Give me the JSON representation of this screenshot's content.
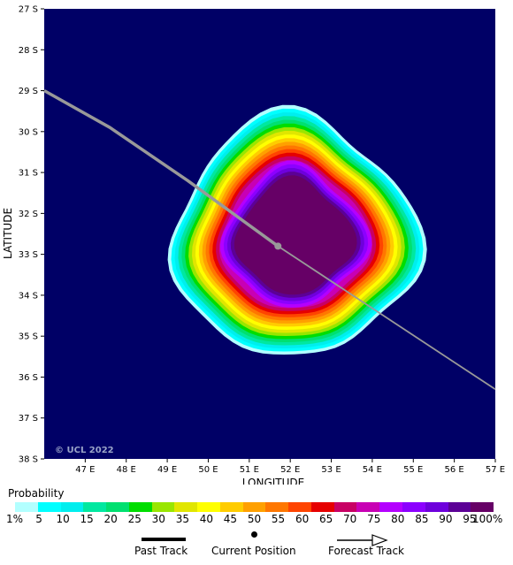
{
  "map": {
    "x_axis_label": "LONGITUDE",
    "y_axis_label": "LATITUDE",
    "copyright": "© UCL 2022",
    "lon_ticks": [
      "47 E",
      "48 E",
      "49 E",
      "50 E",
      "51 E",
      "52 E",
      "53 E",
      "54 E",
      "55 E",
      "56 E",
      "57 E"
    ],
    "lat_ticks": [
      "27 S",
      "28 S",
      "29 S",
      "30 S",
      "31 S",
      "32 S",
      "33 S",
      "34 S",
      "35 S",
      "36 S",
      "37 S",
      "38 S"
    ],
    "lon_range": [
      46,
      57
    ],
    "lat_range": [
      27,
      38
    ],
    "ocean_color": "#000066",
    "track_color": "#999999",
    "past_track": [
      [
        46,
        29.0
      ],
      [
        47.6,
        29.9
      ],
      [
        49.5,
        31.2
      ],
      [
        51.7,
        32.8
      ]
    ],
    "current_position": [
      51.7,
      32.8
    ],
    "forecast_track": [
      [
        51.7,
        32.8
      ],
      [
        57,
        36.3
      ]
    ],
    "probability_field": {
      "center": [
        52.1,
        32.6
      ],
      "outer_extent_radius_deg": 2.9,
      "innermost_radius_deg": 1.35,
      "levels": [
        1,
        5,
        10,
        15,
        20,
        25,
        30,
        35,
        40,
        45,
        50,
        55,
        60,
        65,
        70,
        75,
        80,
        85,
        90,
        95,
        100
      ]
    }
  },
  "legend": {
    "title": "Probability",
    "labels": [
      "1%",
      "5",
      "10",
      "15",
      "20",
      "25",
      "30",
      "35",
      "40",
      "45",
      "50",
      "55",
      "60",
      "65",
      "70",
      "75",
      "80",
      "85",
      "90",
      "95",
      "100%"
    ],
    "colors": [
      "#b2ffff",
      "#00ffff",
      "#00eeee",
      "#00e8a0",
      "#00e070",
      "#00dd00",
      "#99e600",
      "#e1e600",
      "#ffff00",
      "#ffcc00",
      "#ffa000",
      "#ff7700",
      "#ff4400",
      "#e60000",
      "#c80064",
      "#c800b4",
      "#b400ff",
      "#8c00ff",
      "#6e00dc",
      "#5c0096",
      "#660066"
    ]
  },
  "key": {
    "past_track_label": "Past Track",
    "current_position_label": "Current Position",
    "forecast_track_label": "Forecast Track"
  }
}
